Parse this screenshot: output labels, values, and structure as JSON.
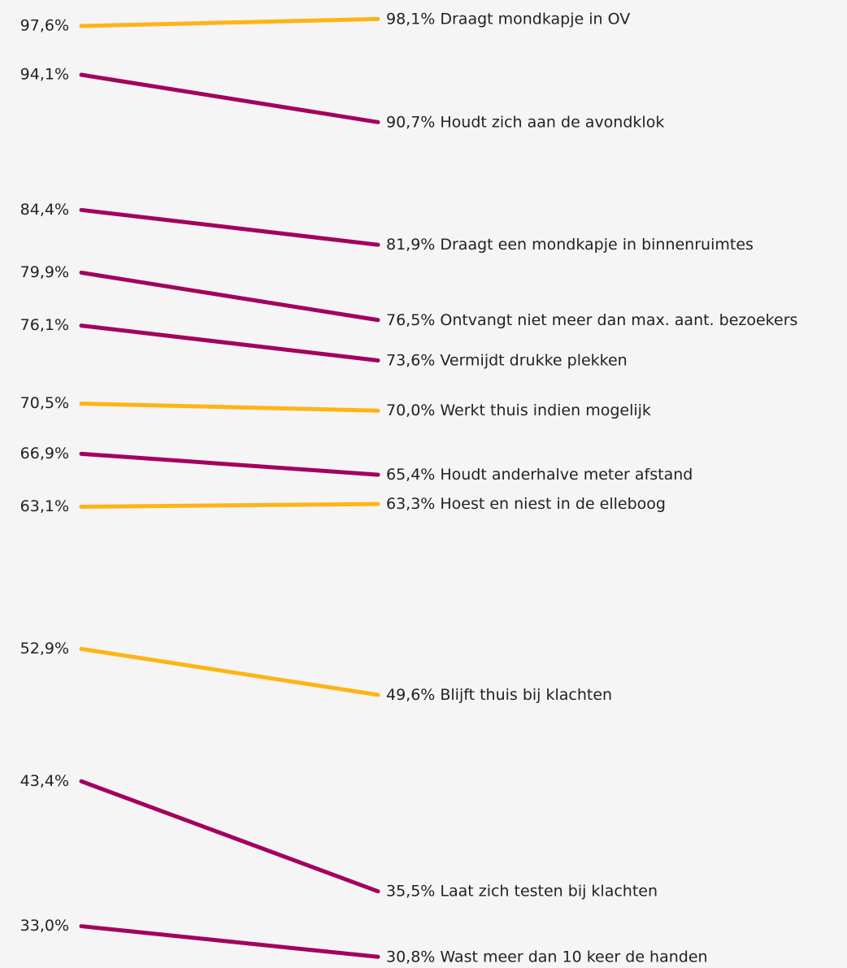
{
  "chart_data": {
    "type": "slope",
    "categories": [
      "Draagt mondkapje in OV",
      "Houdt zich aan de avondklok",
      "Draagt een mondkapje in binnenruimtes",
      "Ontvangt niet meer dan max. aant. bezoekers",
      "Vermijdt drukke plekken",
      "Werkt thuis indien mogelijk",
      "Houdt anderhalve meter afstand",
      "Hoest en niest in de elleboog",
      "Blijft thuis bij klachten",
      "Laat zich testen bij klachten",
      "Wast meer dan 10 keer de handen"
    ],
    "start": {
      "values": [
        97.6,
        94.1,
        84.4,
        79.9,
        76.1,
        70.5,
        66.9,
        63.1,
        52.9,
        43.4,
        33.0
      ],
      "value_labels": [
        "97,6%",
        "94,1%",
        "84,4%",
        "79,9%",
        "76,1%",
        "70,5%",
        "66,9%",
        "63,1%",
        "52,9%",
        "43,4%",
        "33,0%"
      ]
    },
    "end": {
      "values": [
        98.1,
        90.7,
        81.9,
        76.5,
        73.6,
        70.0,
        65.4,
        63.3,
        49.6,
        35.5,
        30.8
      ],
      "value_labels": [
        "98,1%",
        "90,7%",
        "81,9%",
        "76,5%",
        "73,6%",
        "70,0%",
        "65,4%",
        "63,3%",
        "49,6%",
        "35,5%",
        "30,8%"
      ]
    },
    "colors": [
      "#fdb515",
      "#a3005f",
      "#a3005f",
      "#a3005f",
      "#a3005f",
      "#fdb515",
      "#a3005f",
      "#fdb515",
      "#fdb515",
      "#a3005f",
      "#a3005f"
    ],
    "ylim": [
      30,
      99
    ]
  }
}
